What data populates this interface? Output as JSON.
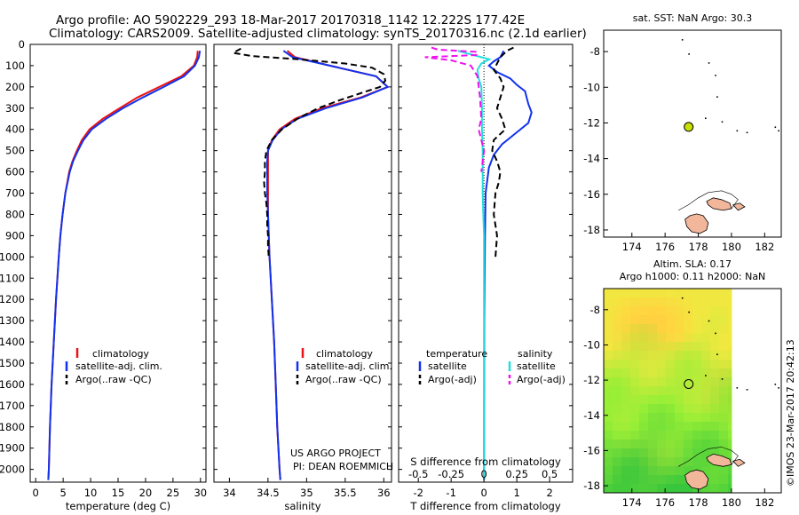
{
  "header": {
    "line1": "Argo profile: AO 5902229_293 18-Mar-2017 20170318_1142 12.222S 177.42E",
    "line2": "Climatology: CARS2009. Satellite-adjusted climatology: synTS_20170316.nc (2.1d earlier)"
  },
  "colors": {
    "climatology": "#ee1111",
    "satellite": "#1133ee",
    "argo": "#000000",
    "sat_salinity": "#22dddd",
    "argo_salinity": "#ee11ee",
    "float_marker": "#c8e000"
  },
  "depth_axis": {
    "ticks": [
      "0",
      "100",
      "200",
      "300",
      "400",
      "500",
      "600",
      "700",
      "800",
      "900",
      "1000",
      "1100",
      "1200",
      "1300",
      "1400",
      "1500",
      "1600",
      "1700",
      "1800",
      "1900",
      "2000"
    ]
  },
  "chart_data": [
    {
      "type": "line",
      "name": "temperature",
      "xlabel": "temperature (deg C)",
      "xlim": [
        -1,
        31
      ],
      "ylim": [
        0,
        2060
      ],
      "xticks": [
        "0",
        "5",
        "10",
        "15",
        "20",
        "25",
        "30"
      ],
      "legend": [
        "climatology",
        "satellite-adj. clim.",
        "Argo(..raw -QC)"
      ],
      "series": [
        {
          "name": "climatology",
          "depth": [
            30,
            60,
            100,
            150,
            200,
            250,
            300,
            350,
            400,
            450,
            500,
            550,
            600,
            700,
            800,
            900,
            1000,
            1200,
            1400,
            1600,
            1800,
            2000,
            2050
          ],
          "values": [
            29.5,
            29.4,
            28.8,
            26.5,
            22.5,
            18.5,
            15.3,
            12.2,
            9.8,
            8.4,
            7.5,
            6.7,
            6.1,
            5.4,
            4.9,
            4.5,
            4.2,
            3.7,
            3.3,
            2.9,
            2.6,
            2.4,
            2.3
          ]
        },
        {
          "name": "satellite-adj. clim.",
          "depth": [
            30,
            60,
            100,
            150,
            200,
            250,
            300,
            350,
            400,
            450,
            500,
            550,
            600,
            700,
            800,
            900,
            1000,
            1200,
            1400,
            1600,
            1800,
            2000,
            2050
          ],
          "values": [
            29.9,
            29.7,
            29.0,
            27.0,
            23.3,
            19.5,
            15.9,
            12.8,
            10.2,
            8.7,
            7.7,
            6.8,
            6.2,
            5.4,
            4.9,
            4.5,
            4.2,
            3.7,
            3.3,
            2.9,
            2.6,
            2.4,
            2.3
          ]
        },
        {
          "name": "Argo(..raw -QC)",
          "depth": [],
          "values": []
        }
      ]
    },
    {
      "type": "line",
      "name": "salinity",
      "xlabel": "salinity",
      "xlim": [
        33.8,
        36.1
      ],
      "ylim": [
        0,
        2060
      ],
      "xticks": [
        "34",
        "34.5",
        "35",
        "35.5",
        "36"
      ],
      "legend": [
        "climatology",
        "satellite-adj. clim.",
        "Argo(..raw -QC)"
      ],
      "annotation": [
        "US ARGO PROJECT",
        "PI: DEAN ROEMMICH"
      ],
      "series": [
        {
          "name": "climatology",
          "depth": [
            30,
            60,
            100,
            150,
            200,
            250,
            300,
            350,
            400,
            450,
            500,
            550,
            600,
            700,
            800,
            1000,
            1200,
            1400,
            1600,
            1800,
            2000,
            2050
          ],
          "values": [
            34.75,
            34.85,
            35.3,
            35.9,
            36.05,
            35.7,
            35.2,
            34.85,
            34.65,
            34.55,
            34.5,
            34.5,
            34.5,
            34.5,
            34.5,
            34.52,
            34.55,
            34.58,
            34.6,
            34.62,
            34.65,
            34.66
          ]
        },
        {
          "name": "satellite-adj. clim.",
          "depth": [
            30,
            60,
            100,
            150,
            200,
            250,
            300,
            350,
            400,
            450,
            500,
            550,
            600,
            700,
            800,
            1000,
            1200,
            1400,
            1600,
            1800,
            2000,
            2050
          ],
          "values": [
            34.7,
            34.82,
            35.3,
            35.9,
            36.05,
            35.72,
            35.25,
            34.88,
            34.67,
            34.56,
            34.5,
            34.49,
            34.49,
            34.49,
            34.5,
            34.52,
            34.55,
            34.58,
            34.6,
            34.62,
            34.65,
            34.66
          ]
        },
        {
          "name": "Argo(..raw -QC)",
          "depth": [
            20,
            40,
            55,
            70,
            90,
            110,
            140,
            170,
            200,
            230,
            260,
            300,
            350,
            400,
            450,
            500,
            550,
            600,
            650,
            700,
            750,
            800,
            850,
            900,
            950,
            1000
          ],
          "values": [
            34.15,
            34.05,
            34.3,
            34.9,
            35.5,
            35.85,
            36.0,
            36.02,
            35.95,
            35.7,
            35.45,
            35.15,
            34.88,
            34.68,
            34.55,
            34.48,
            34.46,
            34.46,
            34.45,
            34.46,
            34.48,
            34.49,
            34.49,
            34.5,
            34.5,
            34.51
          ]
        }
      ]
    },
    {
      "type": "line",
      "name": "difference",
      "xlabel": "T difference from climatology",
      "xlabel_top": "S difference from climatology",
      "xlim": [
        -2.6,
        2.7
      ],
      "ylim": [
        0,
        2060
      ],
      "xticks": [
        "-2",
        "-1",
        "0",
        "1",
        "2"
      ],
      "xticks_top": [
        "-0.5",
        "-0.25",
        "0",
        "0.25",
        "0.5"
      ],
      "legend_titles": [
        "temperature",
        "salinity"
      ],
      "legend": [
        "satellite",
        "Argo(-adj)",
        "satellite",
        "Argo(-adj)"
      ],
      "series": [
        {
          "name": "temperature satellite",
          "depth": [
            30,
            60,
            80,
            100,
            130,
            160,
            190,
            220,
            250,
            280,
            320,
            370,
            420,
            470,
            520,
            580,
            700,
            900,
            1100,
            1300,
            2050
          ],
          "values": [
            0.6,
            0.5,
            0.3,
            0.15,
            0.4,
            0.8,
            1.0,
            1.25,
            1.3,
            1.35,
            1.45,
            1.35,
            0.95,
            0.55,
            0.3,
            0.15,
            0.05,
            0.03,
            0.02,
            0.01,
            0.0
          ]
        },
        {
          "name": "temperature Argo(-adj)",
          "depth": [
            15,
            30,
            60,
            90,
            120,
            160,
            200,
            250,
            300,
            350,
            400,
            450,
            500,
            550,
            600,
            650,
            700,
            800,
            900,
            1000
          ],
          "values": [
            0.9,
            0.7,
            0.5,
            0.4,
            0.3,
            0.5,
            0.6,
            0.5,
            0.4,
            0.55,
            0.65,
            0.3,
            0.25,
            0.4,
            0.5,
            0.45,
            0.35,
            0.3,
            0.4,
            0.35
          ]
        },
        {
          "name": "salinity satellite",
          "depth": [
            30,
            50,
            70,
            90,
            120,
            160,
            200,
            300,
            400,
            500,
            600,
            700,
            800,
            900,
            1000,
            1100,
            1200,
            1300,
            2050
          ],
          "values": [
            -0.2,
            -0.08,
            0.04,
            -0.02,
            -0.05,
            -0.04,
            -0.02,
            -0.015,
            -0.015,
            -0.01,
            -0.01,
            -0.01,
            -0.005,
            0.0,
            0.0,
            0.0,
            0.0,
            0.0,
            0.0
          ]
        },
        {
          "name": "salinity Argo(-adj)",
          "depth": [
            15,
            25,
            35,
            50,
            60,
            75,
            100,
            150,
            250,
            350,
            400,
            450,
            500,
            550,
            600
          ],
          "values": [
            -0.4,
            -0.35,
            -0.05,
            -0.06,
            -0.45,
            -0.25,
            -0.1,
            -0.05,
            -0.03,
            -0.02,
            -0.04,
            -0.02,
            0.0,
            -0.01,
            -0.02
          ]
        }
      ]
    }
  ],
  "sst_map": {
    "title": "sat. SST: NaN Argo: 30.3",
    "lon_ticks": [
      "174",
      "176",
      "178",
      "180",
      "182"
    ],
    "lat_ticks": [
      "-8",
      "-10",
      "-12",
      "-14",
      "-16",
      "-18"
    ],
    "lon_range": [
      172.3,
      183.0
    ],
    "lat_range": [
      -18.4,
      -6.8
    ],
    "float": {
      "lon": 177.42,
      "lat": -12.222
    }
  },
  "sla_map": {
    "title1": "Altim. SLA: 0.17",
    "title2": "Argo h1000: 0.11 h2000: NaN",
    "lon_ticks": [
      "174",
      "176",
      "178",
      "180",
      "182"
    ],
    "lat_ticks": [
      "-8",
      "-10",
      "-12",
      "-14",
      "-16",
      "-18"
    ],
    "lon_range": [
      172.3,
      183.0
    ],
    "lat_range": [
      -18.4,
      -6.8
    ],
    "float": {
      "lon": 177.42,
      "lat": -12.222
    }
  },
  "watermark": "©IMOS 23-Mar-2017 20:42:13"
}
